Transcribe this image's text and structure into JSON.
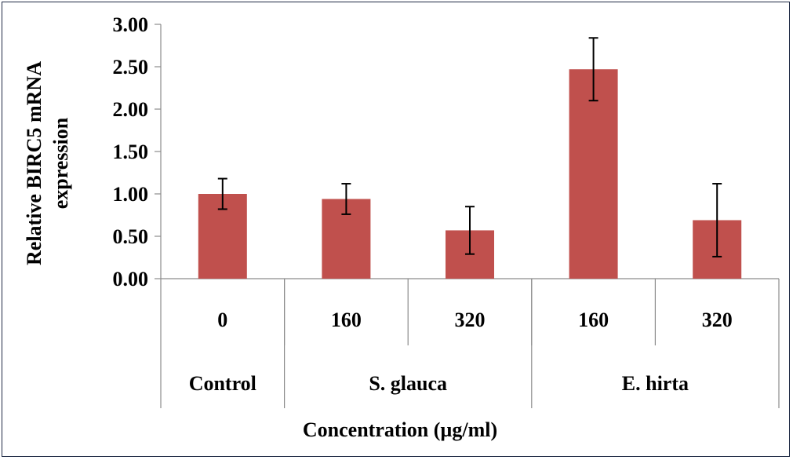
{
  "chart_data": {
    "type": "bar",
    "ylabel_line1": "Relative  BIRC5 mRNA",
    "ylabel_line2": "expression",
    "xlabel": "Concentration   (µg/ml)",
    "ylim": [
      0,
      3
    ],
    "y_ticks": [
      "0.00",
      "0.50",
      "1.00",
      "1.50",
      "2.00",
      "2.50",
      "3.00"
    ],
    "y_tick_values": [
      0,
      0.5,
      1.0,
      1.5,
      2.0,
      2.5,
      3.0
    ],
    "categories": [
      "0",
      "160",
      "320",
      "160",
      "320"
    ],
    "groups": [
      {
        "name": "Control",
        "count": 1
      },
      {
        "name": "S. glauca",
        "count": 2
      },
      {
        "name": "E. hirta",
        "count": 2
      }
    ],
    "values": [
      1.0,
      0.94,
      0.57,
      2.47,
      0.69
    ],
    "errors": [
      0.18,
      0.18,
      0.28,
      0.37,
      0.43
    ],
    "grid": false,
    "bar_color": "#c0504d"
  }
}
